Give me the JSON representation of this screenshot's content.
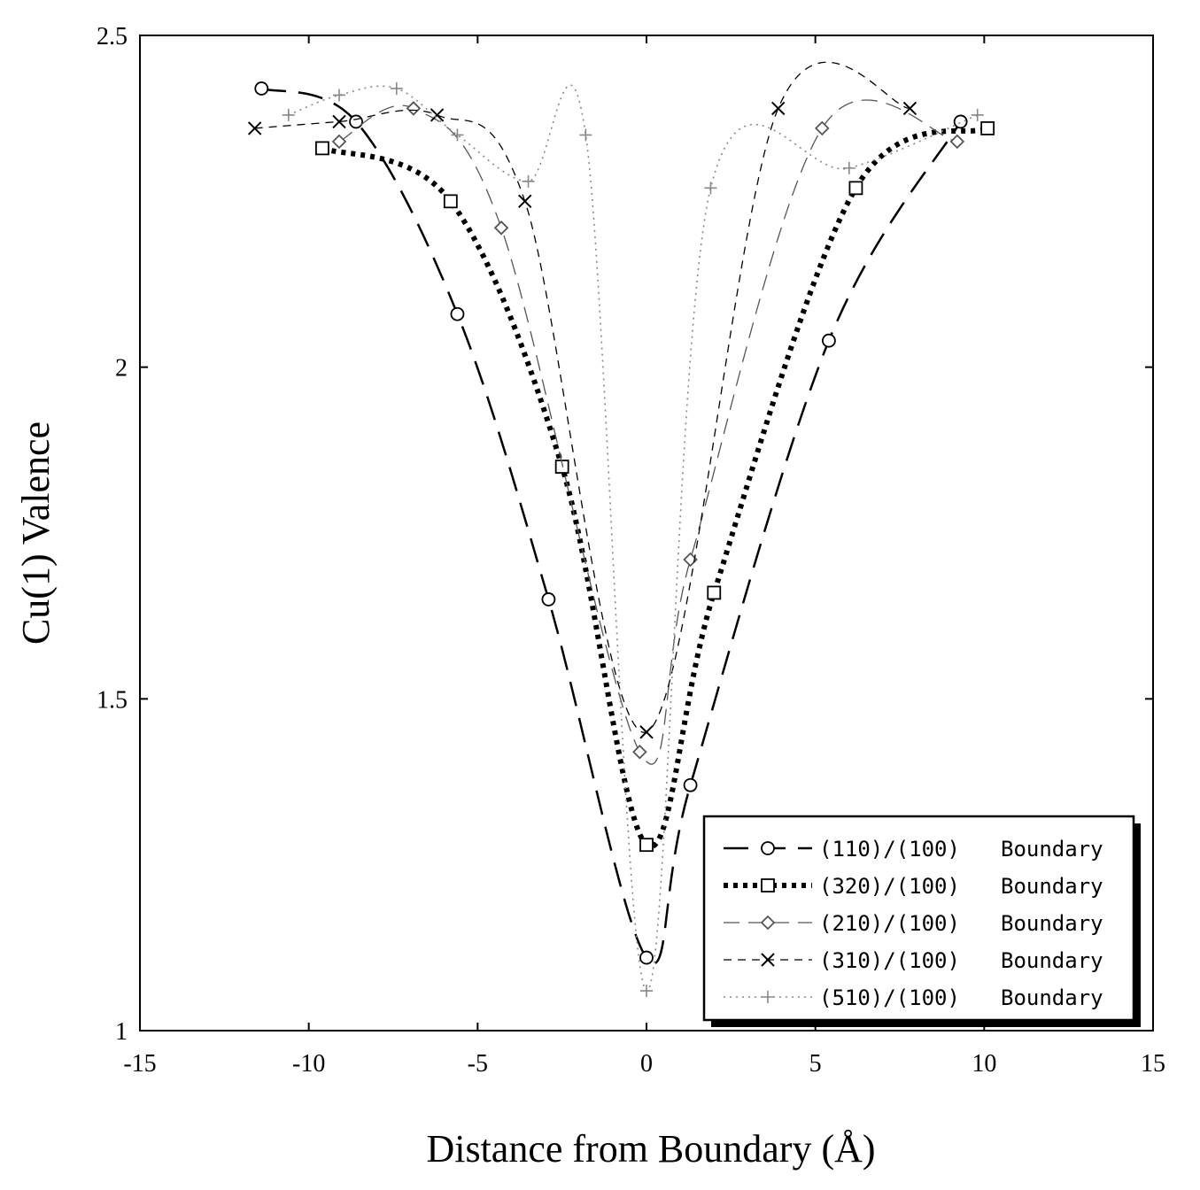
{
  "chart_data": {
    "type": "line",
    "title": "",
    "xlabel": "Distance from Boundary (Å)",
    "ylabel": "Cu(1) Valence",
    "xlim": [
      -15,
      15
    ],
    "ylim": [
      1,
      2.5
    ],
    "xticks": [
      -15,
      -10,
      -5,
      0,
      5,
      10,
      15
    ],
    "xtick_labels": [
      "-15",
      "-10",
      "-5",
      "0",
      "5",
      "10",
      "15"
    ],
    "yticks": [
      1,
      1.5,
      2,
      2.5
    ],
    "ytick_labels": [
      "1",
      "1.5",
      "2",
      "2.5"
    ],
    "grid": false,
    "legend_position": "bottom-right",
    "series": [
      {
        "name": "(110)/(100)",
        "label": "Boundary",
        "marker": "circle",
        "line": "long-dash",
        "color": "#000000",
        "x": [
          -11.4,
          -8.6,
          -5.6,
          -2.9,
          0.0,
          1.3,
          5.4,
          9.3
        ],
        "y": [
          2.42,
          2.37,
          2.08,
          1.65,
          1.11,
          1.37,
          2.04,
          2.37
        ]
      },
      {
        "name": "(320)/(100)",
        "label": "Boundary",
        "marker": "square",
        "line": "heavy-dot",
        "color": "#000000",
        "x": [
          -9.6,
          -5.8,
          -2.5,
          0.0,
          2.0,
          6.2,
          10.1
        ],
        "y": [
          2.33,
          2.25,
          1.85,
          1.28,
          1.66,
          2.27,
          2.36
        ]
      },
      {
        "name": "(210)/(100)",
        "label": "Boundary",
        "marker": "diamond",
        "line": "thin-dash",
        "color": "#555555",
        "x": [
          -9.1,
          -6.9,
          -4.3,
          -0.2,
          1.3,
          5.2,
          9.2
        ],
        "y": [
          2.34,
          2.39,
          2.21,
          1.42,
          1.71,
          2.36,
          2.34
        ]
      },
      {
        "name": "(310)/(100)",
        "label": "Boundary",
        "marker": "x",
        "line": "short-dash",
        "color": "#000000",
        "x": [
          -11.6,
          -9.1,
          -6.2,
          -3.6,
          0.0,
          3.9,
          7.8
        ],
        "y": [
          2.36,
          2.37,
          2.38,
          2.25,
          1.45,
          2.39,
          2.39
        ]
      },
      {
        "name": "(510)/(100)",
        "label": "Boundary",
        "marker": "plus",
        "line": "dotted",
        "color": "#888888",
        "x": [
          -10.6,
          -9.1,
          -7.4,
          -5.6,
          -3.5,
          -1.8,
          0.0,
          1.9,
          6.0,
          9.8
        ],
        "y": [
          2.38,
          2.41,
          2.42,
          2.35,
          2.28,
          2.35,
          1.06,
          2.27,
          2.3,
          2.38
        ]
      }
    ]
  }
}
